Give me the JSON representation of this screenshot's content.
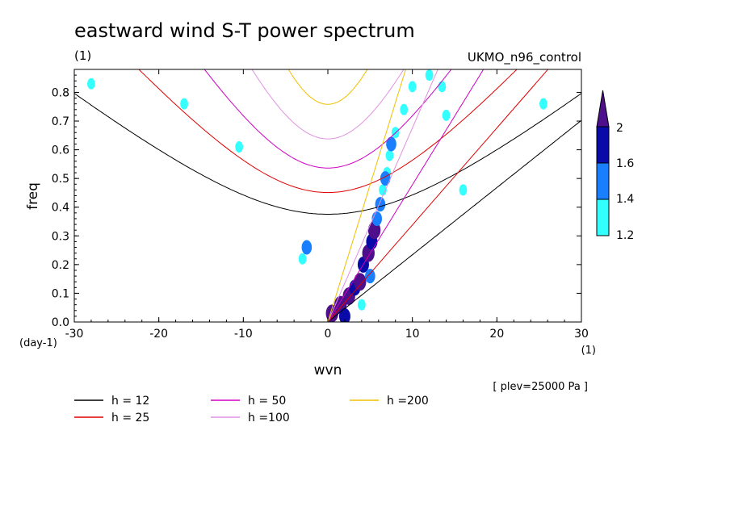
{
  "chart_data": {
    "type": "heatmap",
    "title": "eastward wind S-T power spectrum",
    "subtitle_left": "(1)",
    "subtitle_right": "UKMO_n96_control",
    "xlabel": "wvn",
    "ylabel": "freq",
    "x_unit": "(1)",
    "y_unit": "(day-1)",
    "xlim": [
      -30,
      30
    ],
    "ylim": [
      0,
      0.88
    ],
    "x_ticks": [
      -30,
      -20,
      -10,
      0,
      10,
      20,
      30
    ],
    "y_ticks": [
      0.0,
      0.1,
      0.2,
      0.3,
      0.4,
      0.5,
      0.6,
      0.7,
      0.8
    ],
    "x_tick_labels": [
      "-30",
      "-20",
      "-10",
      "0",
      "10",
      "20",
      "30"
    ],
    "y_tick_labels": [
      "0.0",
      "0.1",
      "0.2",
      "0.3",
      "0.4",
      "0.5",
      "0.6",
      "0.7",
      "0.8"
    ],
    "annotation": "[ plev=25000 Pa ]",
    "colorbar": {
      "levels": [
        1.2,
        1.4,
        1.6,
        2
      ],
      "level_labels": [
        "1.2",
        "1.4",
        "1.6",
        "2"
      ],
      "colors": [
        "#33ffff",
        "#1a7fff",
        "#0a0aa8",
        "#4d0f8c"
      ]
    },
    "shading": [
      {
        "x": 0.5,
        "y": 0.03,
        "level": 4
      },
      {
        "x": 1.5,
        "y": 0.06,
        "level": 4
      },
      {
        "x": 2.5,
        "y": 0.09,
        "level": 4
      },
      {
        "x": 3.2,
        "y": 0.12,
        "level": 3
      },
      {
        "x": 3.8,
        "y": 0.14,
        "level": 4
      },
      {
        "x": 4.2,
        "y": 0.2,
        "level": 3
      },
      {
        "x": 4.8,
        "y": 0.24,
        "level": 4
      },
      {
        "x": 5.2,
        "y": 0.28,
        "level": 3
      },
      {
        "x": 5.5,
        "y": 0.32,
        "level": 4
      },
      {
        "x": 5.8,
        "y": 0.36,
        "level": 2
      },
      {
        "x": 6.2,
        "y": 0.41,
        "level": 2
      },
      {
        "x": 6.5,
        "y": 0.46,
        "level": 1
      },
      {
        "x": 7.0,
        "y": 0.52,
        "level": 1
      },
      {
        "x": 7.3,
        "y": 0.58,
        "level": 1
      },
      {
        "x": 8.0,
        "y": 0.66,
        "level": 1
      },
      {
        "x": 9.0,
        "y": 0.74,
        "level": 1
      },
      {
        "x": 10.0,
        "y": 0.82,
        "level": 1
      },
      {
        "x": 5.0,
        "y": 0.16,
        "level": 2
      },
      {
        "x": 2.0,
        "y": 0.02,
        "level": 3
      },
      {
        "x": 4.0,
        "y": 0.06,
        "level": 1
      },
      {
        "x": -2.5,
        "y": 0.26,
        "level": 2
      },
      {
        "x": -3.0,
        "y": 0.22,
        "level": 1
      },
      {
        "x": 14.0,
        "y": 0.72,
        "level": 1
      },
      {
        "x": 16.0,
        "y": 0.46,
        "level": 1
      },
      {
        "x": 13.5,
        "y": 0.82,
        "level": 1
      },
      {
        "x": -28.0,
        "y": 0.83,
        "level": 1
      },
      {
        "x": -17.0,
        "y": 0.76,
        "level": 1
      },
      {
        "x": -10.5,
        "y": 0.61,
        "level": 1
      },
      {
        "x": 25.5,
        "y": 0.76,
        "level": 1
      },
      {
        "x": 12.0,
        "y": 0.86,
        "level": 1
      },
      {
        "x": 7.5,
        "y": 0.62,
        "level": 2
      },
      {
        "x": 6.8,
        "y": 0.5,
        "level": 2
      }
    ],
    "dispersion_curves": [
      {
        "name": "h = 12",
        "color": "#000000",
        "equivalent_depth": 12
      },
      {
        "name": "h = 25",
        "color": "#e00000",
        "equivalent_depth": 25
      },
      {
        "name": "h = 50",
        "color": "#d000c0",
        "equivalent_depth": 50
      },
      {
        "name": "h =100",
        "color": "#e090e0",
        "equivalent_depth": 100
      },
      {
        "name": "h =200",
        "color": "#f0c000",
        "equivalent_depth": 200
      }
    ],
    "grid": false,
    "legend_position": "bottom-left"
  }
}
